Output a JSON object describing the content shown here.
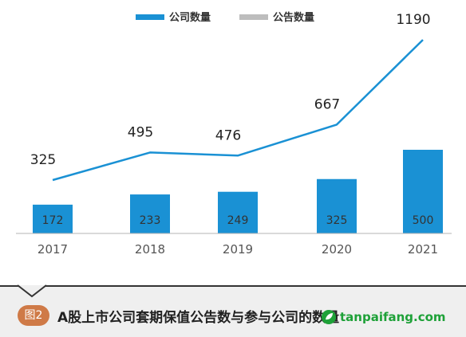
{
  "chart_data": {
    "type": "bar",
    "categories": [
      "2017",
      "2018",
      "2019",
      "2020",
      "2021"
    ],
    "series": [
      {
        "name": "公司数量",
        "type": "bar",
        "color": "#1a91d4",
        "values": [
          172,
          233,
          249,
          325,
          500
        ]
      },
      {
        "name": "公告数量",
        "type": "line",
        "color": "#1a91d4",
        "legend_color": "#bdbdbd",
        "values": [
          325,
          495,
          476,
          667,
          1190
        ]
      }
    ],
    "legend": {
      "position": "top"
    }
  },
  "caption": {
    "badge": "图2",
    "title": "A股上市公司套期保值公告数与参与公司的数量"
  },
  "watermark": {
    "text": "tanpaifang.com"
  }
}
